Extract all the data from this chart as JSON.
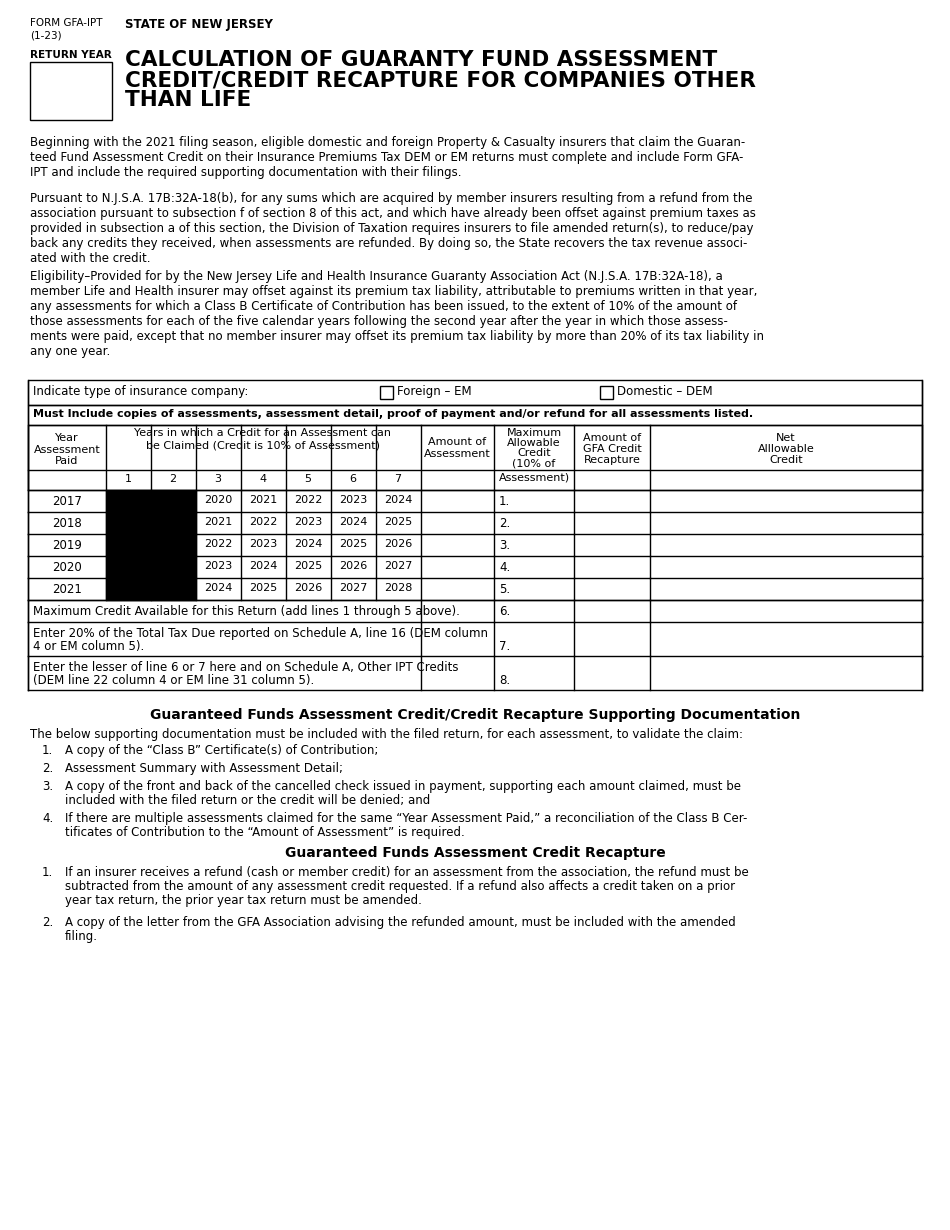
{
  "bg_color": "#ffffff",
  "form_id_line1": "FORM GFA-IPT",
  "form_id_line2": "(1-23)",
  "state": "STATE OF NEW JERSEY",
  "return_year_label": "RETURN YEAR",
  "main_title_line1": "CALCULATION OF GUARANTY FUND ASSESSMENT",
  "main_title_line2": "CREDIT/CREDIT RECAPTURE FOR COMPANIES OTHER",
  "main_title_line3": "THAN LIFE",
  "para1": "Beginning with the 2021 filing season, eligible domestic and foreign Property & Casualty insurers that claim the Guaran-\nteed Fund Assessment Credit on their Insurance Premiums Tax DEM or EM returns must complete and include Form GFA-\nIPT and include the required supporting documentation with their filings.",
  "para2": "Pursuant to N.J.S.A. 17B:32A-18(b), for any sums which are acquired by member insurers resulting from a refund from the\nassociation pursuant to subsection f of section 8 of this act, and which have already been offset against premium taxes as\nprovided in subsection a of this section, the Division of Taxation requires insurers to file amended return(s), to reduce/pay\nback any credits they received, when assessments are refunded. By doing so, the State recovers the tax revenue associ-\nated with the credit.",
  "para3": "Eligibility–Provided for by the New Jersey Life and Health Insurance Guaranty Association Act (N.J.S.A. 17B:32A-18), a\nmember Life and Health insurer may offset against its premium tax liability, attributable to premiums written in that year,\nany assessments for which a Class B Certificate of Contribution has been issued, to the extent of 10% of the amount of\nthose assessments for each of the five calendar years following the second year after the year in which those assess-\nments were paid, except that no member insurer may offset its premium tax liability by more than 20% of its tax liability in\nany one year.",
  "indicate_text": "Indicate type of insurance company:",
  "foreign_em": "Foreign – EM",
  "domestic_dem": "Domestic – DEM",
  "must_include": "Must Include copies of assessments, assessment detail, proof of payment and/or refund for all assessments listed.",
  "table_header_year": "Year\nAssessment\nPaid",
  "table_header_credit_years_line1": "Years in which a Credit for an Assessment can",
  "table_header_credit_years_line2": "be Claimed (Credit is 10% of Assessment)",
  "table_col_nums": [
    "1",
    "2",
    "3",
    "4",
    "5",
    "6",
    "7"
  ],
  "table_header_amount_line1": "Amount of",
  "table_header_amount_line2": "Assessment",
  "table_header_max_line1": "Maximum",
  "table_header_max_line2": "Allowable",
  "table_header_max_line3": "Credit",
  "table_header_max_line4": "(10% of",
  "table_header_max_line5": "Assessment)",
  "table_header_gfa_line1": "Amount of",
  "table_header_gfa_line2": "GFA Credit",
  "table_header_gfa_line3": "Recapture",
  "table_header_net_line1": "Net",
  "table_header_net_line2": "Alllowable",
  "table_header_net_line3": "Credit",
  "table_years": [
    "2017",
    "2018",
    "2019",
    "2020",
    "2021"
  ],
  "table_credit_years": [
    [
      "",
      "",
      "2020",
      "2021",
      "2022",
      "2023",
      "2024"
    ],
    [
      "",
      "",
      "2021",
      "2022",
      "2023",
      "2024",
      "2025"
    ],
    [
      "",
      "",
      "2022",
      "2023",
      "2024",
      "2025",
      "2026"
    ],
    [
      "",
      "",
      "2023",
      "2024",
      "2025",
      "2026",
      "2027"
    ],
    [
      "",
      "",
      "2024",
      "2025",
      "2026",
      "2027",
      "2028"
    ]
  ],
  "line_nums": [
    "1.",
    "2.",
    "3.",
    "4.",
    "5."
  ],
  "row6_label": "Maximum Credit Available for this Return (add lines 1 through 5 above).",
  "row6_num": "6.",
  "row7_label_line1": "Enter 20% of the Total Tax Due reported on Schedule A, line 16 (DEM column",
  "row7_label_line2": "4 or EM column 5).",
  "row7_num": "7.",
  "row8_label_line1": "Enter the lesser of line 6 or 7 here and on Schedule A, Other IPT Credits",
  "row8_label_line2": "(DEM line 22 column 4 or EM line 31 column 5).",
  "row8_num": "8.",
  "section2_title": "Guaranteed Funds Assessment Credit/Credit Recapture Supporting Documentation",
  "section2_intro": "The below supporting documentation must be included with the filed return, for each assessment, to validate the claim:",
  "section2_item1": "A copy of the “Class B” Certificate(s) of Contribution;",
  "section2_item2": "Assessment Summary with Assessment Detail;",
  "section2_item3_line1": "A copy of the front and back of the cancelled check issued in payment, supporting each amount claimed, must be",
  "section2_item3_line2": "included with the filed return or the credit will be denied; and",
  "section2_item4_line1": "If there are multiple assessments claimed for the same “Year Assessment Paid,” a reconciliation of the Class B Cer-",
  "section2_item4_line2": "tificates of Contribution to the “Amount of Assessment” is required.",
  "section3_title": "Guaranteed Funds Assessment Credit Recapture",
  "section3_item1_line1": "If an insurer receives a refund (cash or member credit) for an assessment from the association, the refund must be",
  "section3_item1_line2": "subtracted from the amount of any assessment credit requested. If a refund also affects a credit taken on a prior",
  "section3_item1_line3": "year tax return, the prior year tax return must be amended.",
  "section3_item2_line1": "A copy of the letter from the GFA Association advising the refunded amount, must be included with the amended",
  "section3_item2_line2": "filing."
}
